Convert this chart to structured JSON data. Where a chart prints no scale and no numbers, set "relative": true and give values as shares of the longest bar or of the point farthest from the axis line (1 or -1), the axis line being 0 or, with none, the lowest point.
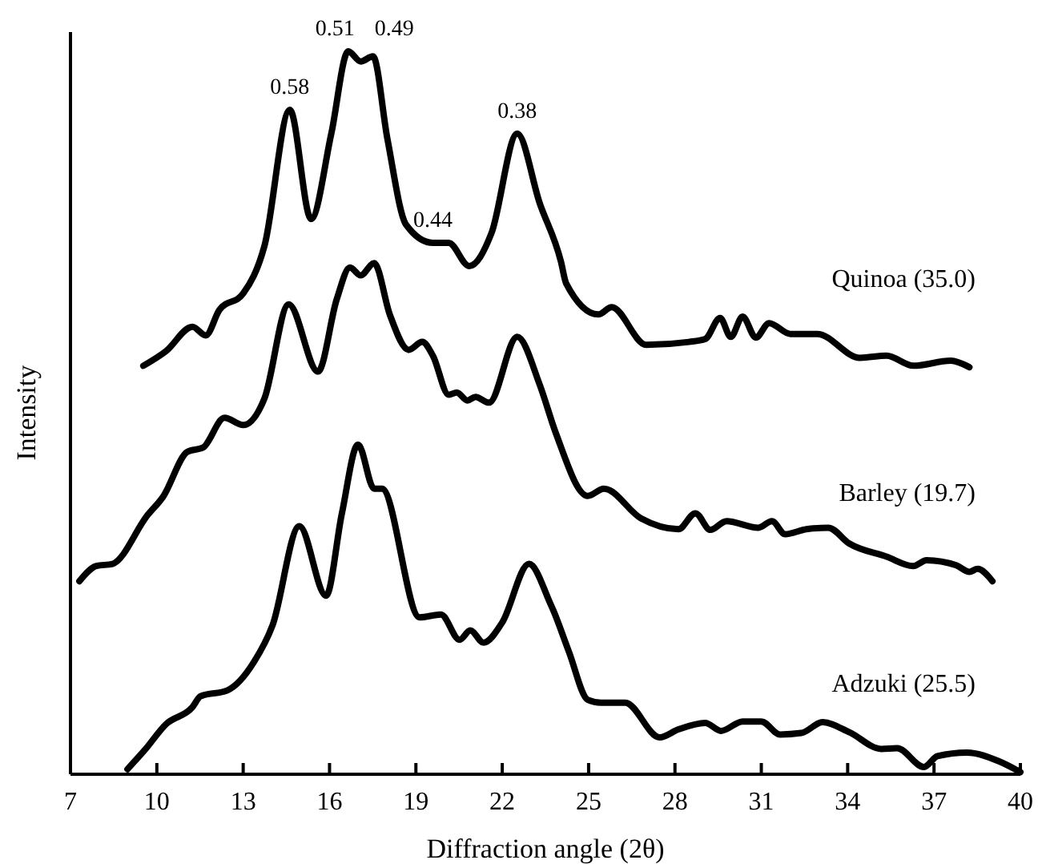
{
  "chart_data": {
    "type": "line",
    "relative": true,
    "xlabel": "Diffraction angle (2θ)",
    "ylabel": "Intensity",
    "xlim": [
      7,
      40
    ],
    "xticks": [
      7,
      10,
      13,
      16,
      19,
      22,
      25,
      28,
      31,
      34,
      37,
      40
    ],
    "annotations": [
      {
        "text": "0.58",
        "x": 14.62,
        "y": 0.919
      },
      {
        "text": "0.51",
        "x": 16.65,
        "y": 1.0
      },
      {
        "text": "0.49",
        "x": 17.51,
        "y": 0.993
      },
      {
        "text": "0.44",
        "x": 19.59,
        "y": 0.735
      },
      {
        "text": "0.38",
        "x": 22.52,
        "y": 0.886
      }
    ],
    "series": [
      {
        "name": "Quinoa (35.0)",
        "color": "#000000",
        "x": [
          9.53,
          10.31,
          11.24,
          11.7,
          12.17,
          13.0,
          13.74,
          14.62,
          15.36,
          16.06,
          16.65,
          17.08,
          17.51,
          18.01,
          18.66,
          19.59,
          20.14,
          20.85,
          21.63,
          22.52,
          23.3,
          24.04,
          24.22,
          25.34,
          25.8,
          27.0,
          28.49,
          29.05,
          29.57,
          29.94,
          30.35,
          30.81,
          31.27,
          32.01,
          32.94,
          34.43,
          35.35,
          36.28,
          37.58,
          38.23
        ],
        "values": [
          0.565,
          0.585,
          0.619,
          0.607,
          0.642,
          0.665,
          0.731,
          0.919,
          0.768,
          0.886,
          1.0,
          0.986,
          0.993,
          0.879,
          0.76,
          0.735,
          0.735,
          0.703,
          0.749,
          0.886,
          0.79,
          0.709,
          0.679,
          0.636,
          0.646,
          0.594,
          0.598,
          0.602,
          0.631,
          0.605,
          0.633,
          0.604,
          0.624,
          0.609,
          0.609,
          0.576,
          0.579,
          0.565,
          0.572,
          0.563
        ]
      },
      {
        "name": "Barley (19.7)",
        "color": "#000000",
        "x": [
          7.31,
          7.9,
          8.46,
          9.67,
          10.22,
          11.06,
          11.61,
          12.35,
          13.0,
          13.74,
          14.58,
          15.6,
          16.25,
          16.71,
          17.08,
          17.55,
          18.1,
          18.75,
          19.22,
          19.59,
          20.14,
          20.42,
          20.79,
          21.07,
          21.54,
          22.52,
          23.3,
          23.86,
          24.97,
          25.53,
          26.82,
          28.12,
          28.71,
          29.23,
          29.79,
          30.9,
          31.37,
          31.83,
          32.57,
          33.32,
          34.06,
          35.35,
          36.28,
          36.74,
          37.77,
          38.23,
          38.51,
          39.03
        ],
        "values": [
          0.267,
          0.288,
          0.291,
          0.358,
          0.384,
          0.446,
          0.452,
          0.493,
          0.483,
          0.52,
          0.65,
          0.557,
          0.657,
          0.701,
          0.69,
          0.707,
          0.635,
          0.587,
          0.598,
          0.579,
          0.525,
          0.528,
          0.517,
          0.522,
          0.514,
          0.605,
          0.539,
          0.472,
          0.385,
          0.395,
          0.354,
          0.339,
          0.361,
          0.338,
          0.35,
          0.341,
          0.35,
          0.332,
          0.339,
          0.341,
          0.319,
          0.301,
          0.288,
          0.296,
          0.289,
          0.28,
          0.284,
          0.267
        ]
      },
      {
        "name": "Adzuki (25.5)",
        "color": "#000000",
        "x": [
          8.98,
          9.57,
          10.31,
          11.24,
          11.52,
          12.45,
          13.37,
          14.02,
          14.95,
          15.88,
          16.43,
          16.99,
          17.55,
          17.82,
          19.13,
          19.87,
          20.52,
          20.89,
          21.35,
          22.0,
          22.93,
          23.67,
          23.76,
          24.32,
          24.97,
          25.43,
          26.27,
          27.47,
          28.12,
          29.05,
          29.6,
          30.35,
          31.0,
          31.65,
          32.39,
          33.13,
          34.06,
          35.17,
          35.72,
          36.65,
          37.12,
          38.14,
          39.25,
          40.0
        ],
        "values": [
          0.007,
          0.033,
          0.069,
          0.093,
          0.108,
          0.116,
          0.155,
          0.206,
          0.343,
          0.247,
          0.361,
          0.456,
          0.395,
          0.395,
          0.217,
          0.221,
          0.186,
          0.199,
          0.182,
          0.21,
          0.291,
          0.236,
          0.228,
          0.169,
          0.103,
          0.099,
          0.099,
          0.051,
          0.062,
          0.071,
          0.06,
          0.073,
          0.073,
          0.055,
          0.057,
          0.072,
          0.058,
          0.035,
          0.036,
          0.01,
          0.025,
          0.03,
          0.018,
          0.003
        ]
      }
    ]
  }
}
